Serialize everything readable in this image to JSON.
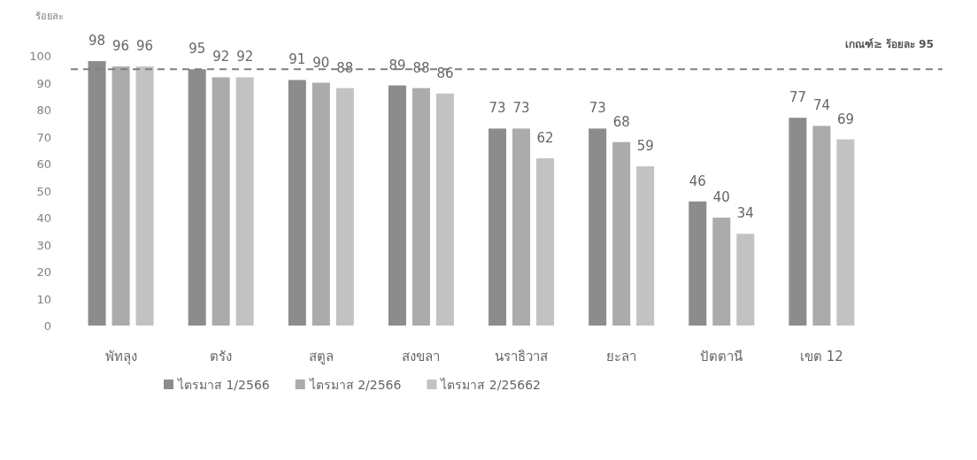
{
  "chart_data": {
    "type": "bar",
    "ylabel": "ร้อยละ",
    "categories": [
      "พัทลุง",
      "ตรัง",
      "สตูล",
      "สงขลา",
      "นราธิวาส",
      "ยะลา",
      "ปัตตานี",
      "เขต 12"
    ],
    "series": [
      {
        "name": "ไตรมาส 1/2566",
        "color": "#8c8c8c",
        "values": [
          98,
          95,
          91,
          89,
          73,
          73,
          46,
          77
        ]
      },
      {
        "name": "ไตรมาส 2/2566",
        "color": "#ababab",
        "values": [
          96,
          92,
          90,
          88,
          73,
          68,
          40,
          74
        ]
      },
      {
        "name": "ไตรมาส 2/25662",
        "color": "#c2c2c2",
        "values": [
          96,
          92,
          88,
          86,
          62,
          59,
          34,
          69
        ]
      }
    ],
    "ylim": [
      0,
      100
    ],
    "yticks": [
      0,
      10,
      20,
      30,
      40,
      50,
      60,
      70,
      80,
      90,
      100
    ],
    "data_labels": true,
    "legend": "bottom",
    "grid": false,
    "ref_lines": [
      {
        "axis": "y",
        "value": 95,
        "label": "เกณฑ์≥ ร้อยละ 95",
        "color": "#808080",
        "line_style": "dashed"
      }
    ]
  }
}
